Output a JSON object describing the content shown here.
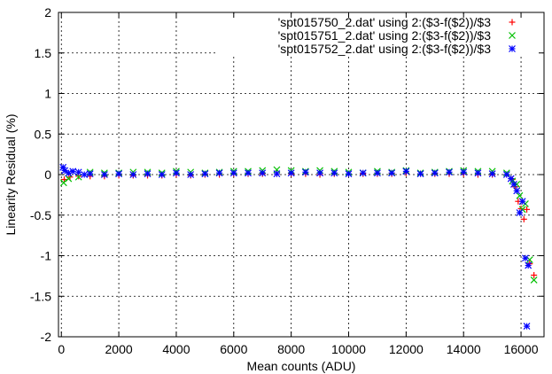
{
  "chart_data": {
    "type": "scatter",
    "title": "",
    "xlabel": "Mean counts (ADU)",
    "ylabel": "Linearity Residual (%)",
    "xlim": [
      -100,
      16800
    ],
    "ylim": [
      -2,
      2
    ],
    "xticks": [
      0,
      2000,
      4000,
      6000,
      8000,
      10000,
      12000,
      14000,
      16000
    ],
    "yticks": [
      -2,
      -1.5,
      -1,
      -0.5,
      0,
      0.5,
      1,
      1.5,
      2
    ],
    "xtick_labels": [
      "0",
      "2000",
      "4000",
      "6000",
      "8000",
      "10000",
      "12000",
      "14000",
      "16000"
    ],
    "ytick_labels": [
      "-2",
      "-1.5",
      "-1",
      "-0.5",
      "0",
      "0.5",
      "1",
      "1.5",
      "2"
    ],
    "grid": true,
    "legend_position": "top-right",
    "series": [
      {
        "name": "'spt015750_2.dat' using 2:($3-f($2))/$3",
        "marker": "plus",
        "color": "#ff0000",
        "points": [
          [
            100,
            -0.06
          ],
          [
            300,
            -0.03
          ],
          [
            600,
            -0.02
          ],
          [
            1000,
            -0.02
          ],
          [
            1500,
            -0.02
          ],
          [
            2000,
            -0.01
          ],
          [
            2500,
            -0.01
          ],
          [
            3000,
            -0.01
          ],
          [
            3500,
            -0.01
          ],
          [
            4000,
            0.0
          ],
          [
            4500,
            -0.01
          ],
          [
            5000,
            0.0
          ],
          [
            5500,
            0.0
          ],
          [
            6000,
            0.01
          ],
          [
            6500,
            0.01
          ],
          [
            7000,
            0.01
          ],
          [
            7500,
            0.01
          ],
          [
            8000,
            0.01
          ],
          [
            8500,
            0.01
          ],
          [
            9000,
            0.0
          ],
          [
            9500,
            0.01
          ],
          [
            10000,
            0.01
          ],
          [
            10500,
            0.01
          ],
          [
            11000,
            0.01
          ],
          [
            11500,
            0.01
          ],
          [
            12000,
            0.02
          ],
          [
            12500,
            0.01
          ],
          [
            13000,
            0.01
          ],
          [
            13500,
            0.01
          ],
          [
            14000,
            0.01
          ],
          [
            14500,
            0.0
          ],
          [
            15000,
            0.0
          ],
          [
            15500,
            0.0
          ],
          [
            15700,
            -0.06
          ],
          [
            15800,
            -0.15
          ],
          [
            15900,
            -0.33
          ],
          [
            16000,
            -0.42
          ],
          [
            16100,
            -0.55
          ],
          [
            16200,
            -0.43
          ],
          [
            16300,
            -1.1
          ],
          [
            16450,
            -1.24
          ]
        ]
      },
      {
        "name": "'spt015751_2.dat' using 2:($3-f($2))/$3",
        "marker": "cross",
        "color": "#00c000",
        "points": [
          [
            80,
            -0.1
          ],
          [
            250,
            -0.05
          ],
          [
            600,
            -0.03
          ],
          [
            1000,
            0.03
          ],
          [
            1500,
            0.02
          ],
          [
            2000,
            0.02
          ],
          [
            2500,
            0.03
          ],
          [
            3000,
            0.03
          ],
          [
            3500,
            0.02
          ],
          [
            4000,
            0.04
          ],
          [
            4500,
            0.03
          ],
          [
            5000,
            0.02
          ],
          [
            5500,
            0.03
          ],
          [
            6000,
            0.04
          ],
          [
            6500,
            0.04
          ],
          [
            7000,
            0.05
          ],
          [
            7500,
            0.06
          ],
          [
            8000,
            0.05
          ],
          [
            8500,
            0.04
          ],
          [
            9000,
            0.05
          ],
          [
            9500,
            0.04
          ],
          [
            10000,
            0.03
          ],
          [
            10500,
            0.02
          ],
          [
            11000,
            0.04
          ],
          [
            11500,
            0.03
          ],
          [
            12000,
            0.05
          ],
          [
            12500,
            0.02
          ],
          [
            13000,
            0.03
          ],
          [
            13500,
            0.04
          ],
          [
            14000,
            0.05
          ],
          [
            14500,
            0.04
          ],
          [
            15000,
            0.04
          ],
          [
            15500,
            0.02
          ],
          [
            15700,
            -0.08
          ],
          [
            15850,
            -0.12
          ],
          [
            15950,
            -0.26
          ],
          [
            16050,
            -0.43
          ],
          [
            16150,
            -0.36
          ],
          [
            16300,
            -1.05
          ],
          [
            16450,
            -1.3
          ]
        ]
      },
      {
        "name": "'spt015752_2.dat' using 2:($3-f($2))/$3",
        "marker": "star",
        "color": "#0000ff",
        "points": [
          [
            60,
            0.09
          ],
          [
            120,
            0.05
          ],
          [
            250,
            0.02
          ],
          [
            400,
            0.04
          ],
          [
            600,
            0.03
          ],
          [
            800,
            0.0
          ],
          [
            1000,
            0.01
          ],
          [
            1500,
            0.0
          ],
          [
            2000,
            0.01
          ],
          [
            2500,
            0.0
          ],
          [
            3000,
            0.01
          ],
          [
            3500,
            0.0
          ],
          [
            4000,
            0.02
          ],
          [
            4500,
            0.0
          ],
          [
            5000,
            0.01
          ],
          [
            5500,
            0.02
          ],
          [
            6000,
            0.02
          ],
          [
            6500,
            0.02
          ],
          [
            7000,
            0.02
          ],
          [
            7500,
            0.01
          ],
          [
            8000,
            0.02
          ],
          [
            8500,
            0.03
          ],
          [
            9000,
            0.02
          ],
          [
            9500,
            0.02
          ],
          [
            10000,
            0.01
          ],
          [
            10500,
            0.02
          ],
          [
            11000,
            0.02
          ],
          [
            11500,
            0.02
          ],
          [
            12000,
            0.04
          ],
          [
            12500,
            0.01
          ],
          [
            13000,
            0.02
          ],
          [
            13500,
            0.03
          ],
          [
            14000,
            0.03
          ],
          [
            14500,
            0.02
          ],
          [
            15000,
            0.01
          ],
          [
            15500,
            0.0
          ],
          [
            15650,
            -0.05
          ],
          [
            15750,
            -0.12
          ],
          [
            15850,
            -0.2
          ],
          [
            15950,
            -0.47
          ],
          [
            16050,
            -0.33
          ],
          [
            16150,
            -1.03
          ],
          [
            16250,
            -1.12
          ],
          [
            16200,
            -1.87
          ]
        ]
      }
    ]
  }
}
